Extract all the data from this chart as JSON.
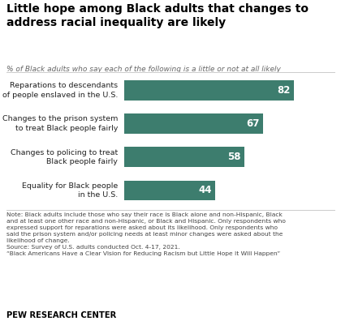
{
  "title": "Little hope among Black adults that changes to\naddress racial inequality are likely",
  "subtitle": "% of Black adults who say each of the following is a little or not at all likely",
  "categories": [
    "Reparations to descendants\nof people enslaved in the U.S.",
    "Changes to the prison system\nto treat Black people fairly",
    "Changes to policing to treat\nBlack people fairly",
    "Equality for Black people\nin the U.S."
  ],
  "values": [
    82,
    67,
    58,
    44
  ],
  "bar_color": "#3d7d6e",
  "value_color": "#ffffff",
  "title_color": "#000000",
  "subtitle_color": "#666666",
  "note_text": "Note: Black adults include those who say their race is Black alone and non-Hispanic, Black\nand at least one other race and non-Hispanic, or Black and Hispanic. Only respondents who\nexpressed support for reparations were asked about its likelihood. Only respondents who\nsaid the prison system and/or policing needs at least minor changes were asked about the\nlikelihood of change.\nSource: Survey of U.S. adults conducted Oct. 4-17, 2021.\n“Black Americans Have a Clear Vision for Reducing Racism but Little Hope It Will Happen”",
  "footer": "PEW RESEARCH CENTER",
  "xlim": [
    0,
    100
  ],
  "background_color": "#ffffff"
}
